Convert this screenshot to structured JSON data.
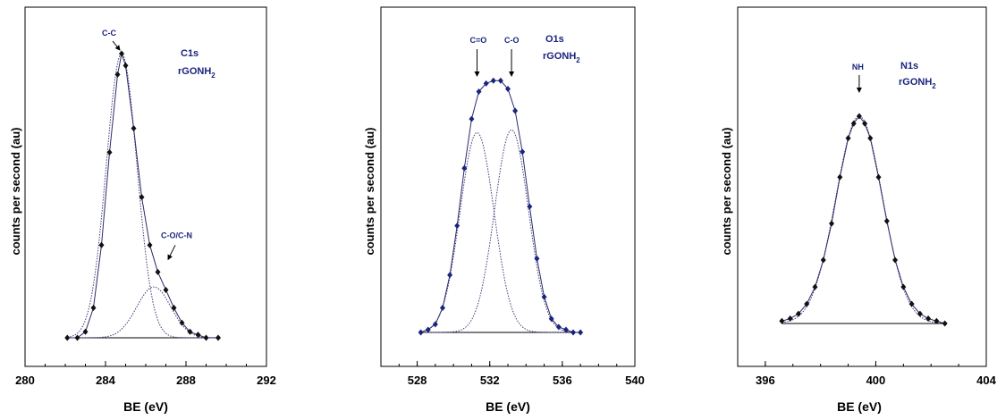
{
  "chart_data": [
    {
      "type": "scatter",
      "title": "C1s",
      "subtitle": "rGONH2",
      "xlabel": "BE (eV)",
      "ylabel": "counts per second (au)",
      "xlim": [
        280,
        292
      ],
      "xticks": [
        280,
        284,
        288,
        292
      ],
      "grid": false,
      "baseline": [
        [
          282.1,
          0.05
        ],
        [
          289.6,
          0.05
        ]
      ],
      "components": [
        {
          "label": "C-C",
          "center": 284.8,
          "fwhm": 1.8,
          "height": 0.95
        },
        {
          "label": "C-O/C-N",
          "center": 286.4,
          "fwhm": 2.0,
          "height": 0.17
        }
      ],
      "series": [
        {
          "name": "",
          "x": [
            282.1,
            282.6,
            283.0,
            283.4,
            283.8,
            284.2,
            284.6,
            284.8,
            285.0,
            285.4,
            285.8,
            286.2,
            286.6,
            287.0,
            287.4,
            287.8,
            288.2,
            288.6,
            289.0,
            289.6
          ],
          "y": [
            0.05,
            0.05,
            0.07,
            0.15,
            0.36,
            0.67,
            0.93,
            1.0,
            0.96,
            0.75,
            0.52,
            0.36,
            0.27,
            0.21,
            0.15,
            0.1,
            0.07,
            0.06,
            0.05,
            0.05
          ]
        }
      ],
      "annotations": [
        {
          "text": "C-C",
          "x": 284.8,
          "y": 1.0
        },
        {
          "text": "C-O/C-N",
          "x": 287.2,
          "y": 0.3
        }
      ]
    },
    {
      "type": "scatter",
      "title": "O1s",
      "subtitle": "rGONH2",
      "xlabel": "BE (eV)",
      "ylabel": "counts per second (au)",
      "xlim": [
        526,
        540
      ],
      "xticks": [
        528,
        532,
        536,
        540
      ],
      "grid": false,
      "baseline": [
        [
          528.2,
          0.04
        ],
        [
          537.0,
          0.04
        ]
      ],
      "components": [
        {
          "label": "C=O",
          "center": 531.3,
          "fwhm": 2.2,
          "height": 0.73
        },
        {
          "label": "C-O",
          "center": 533.2,
          "fwhm": 2.2,
          "height": 0.74
        }
      ],
      "series": [
        {
          "name": "",
          "x": [
            528.2,
            528.6,
            529.0,
            529.4,
            529.8,
            530.2,
            530.6,
            531.0,
            531.4,
            531.8,
            532.2,
            532.6,
            533.0,
            533.4,
            533.8,
            534.2,
            534.6,
            535.0,
            535.4,
            535.8,
            536.2,
            536.6,
            537.0
          ],
          "y": [
            0.04,
            0.05,
            0.07,
            0.13,
            0.25,
            0.43,
            0.64,
            0.82,
            0.92,
            0.95,
            0.96,
            0.96,
            0.93,
            0.85,
            0.7,
            0.5,
            0.31,
            0.17,
            0.09,
            0.06,
            0.05,
            0.04,
            0.04
          ]
        }
      ],
      "annotations": [
        {
          "text": "C=O",
          "x": 531.3,
          "y": 0.95
        },
        {
          "text": "C-O",
          "x": 533.2,
          "y": 0.95
        }
      ]
    },
    {
      "type": "scatter",
      "title": "N1s",
      "subtitle": "rGONH2",
      "xlabel": "BE (eV)",
      "ylabel": "counts per second (au)",
      "xlim": [
        395,
        404
      ],
      "xticks": [
        396,
        400,
        404
      ],
      "grid": false,
      "baseline": [
        [
          396.6,
          0.04
        ],
        [
          402.5,
          0.04
        ]
      ],
      "components": [
        {
          "label": "NH",
          "center": 399.4,
          "fwhm": 2.0,
          "height": 0.85
        }
      ],
      "series": [
        {
          "name": "",
          "x": [
            396.6,
            396.9,
            397.2,
            397.5,
            397.8,
            398.1,
            398.4,
            398.7,
            399.0,
            399.2,
            399.4,
            399.6,
            399.8,
            400.1,
            400.4,
            400.7,
            401.0,
            401.3,
            401.6,
            401.9,
            402.2,
            402.5
          ],
          "y": [
            0.05,
            0.06,
            0.08,
            0.12,
            0.19,
            0.3,
            0.45,
            0.64,
            0.8,
            0.86,
            0.89,
            0.86,
            0.8,
            0.64,
            0.46,
            0.3,
            0.19,
            0.12,
            0.08,
            0.06,
            0.05,
            0.04
          ]
        }
      ],
      "annotations": [
        {
          "text": "NH",
          "x": 399.4,
          "y": 0.9
        }
      ]
    }
  ],
  "colors": {
    "markers": "#1a237e",
    "marker_dark": "#111111",
    "fit_line": "#2a2a6a",
    "component_line": "#3a3a7a",
    "axes": "#000000"
  }
}
